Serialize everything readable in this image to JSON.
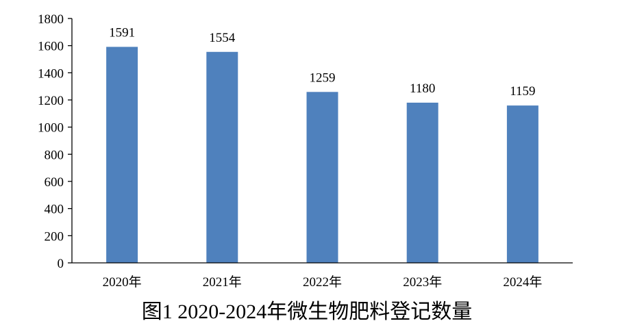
{
  "chart_data": {
    "type": "bar",
    "title": "图1 2020-2024年微生物肥料登记数量",
    "xlabel": "",
    "ylabel": "",
    "categories": [
      "2020年",
      "2021年",
      "2022年",
      "2023年",
      "2024年"
    ],
    "values": [
      1591,
      1554,
      1259,
      1180,
      1159
    ],
    "data_labels": [
      "1591",
      "1554",
      "1259",
      "1180",
      "1159"
    ],
    "ylim": [
      0,
      1800
    ],
    "yticks": [
      0,
      200,
      400,
      600,
      800,
      1000,
      1200,
      1400,
      1600,
      1800
    ],
    "ytick_labels": [
      "0",
      "200",
      "400",
      "600",
      "800",
      "1000",
      "1200",
      "1400",
      "1600",
      "1800"
    ],
    "grid": false,
    "legend": "none",
    "bar_color": "#4F81BD",
    "axis_color": "#000000"
  }
}
